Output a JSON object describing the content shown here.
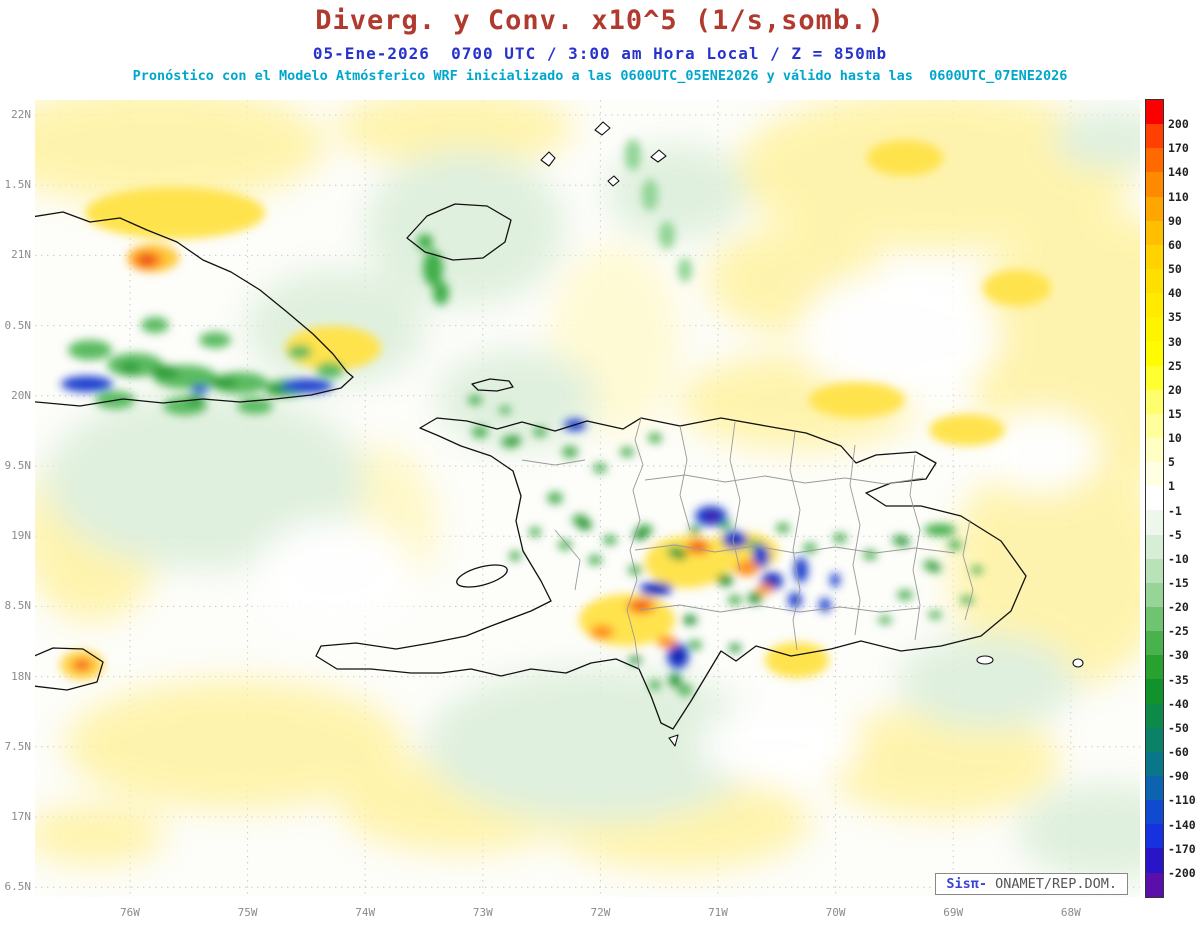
{
  "header": {
    "title": "Diverg. y Conv. x10^5 (1/s,somb.)",
    "datetime_line": "05-Ene-2026  0700 UTC / 3:00 am Hora Local / Z = 850mb",
    "forecast_line": "Pronóstico con el Modelo Atmósferico WRF inicializado a las 0600UTC_05ENE2026 y válido hasta las  0600UTC_07ENE2026",
    "title_color": "#b03a2e",
    "datetime_color": "#2733cc",
    "forecast_color": "#00a7cc"
  },
  "map": {
    "lat_ticks": [
      "22N",
      "1.5N",
      "21N",
      "0.5N",
      "20N",
      "9.5N",
      "19N",
      "8.5N",
      "18N",
      "7.5N",
      "17N",
      "6.5N"
    ],
    "lon_ticks": [
      "76W",
      "75W",
      "74W",
      "73W",
      "72W",
      "71W",
      "70W",
      "69W",
      "68W"
    ],
    "watermark": {
      "brand": "Sisπ-",
      "text": " ONAMET/REP.DOM."
    }
  },
  "colorbar": {
    "units": "x10^5 (1/s)",
    "labels": [
      "200",
      "170",
      "140",
      "110",
      "90",
      "60",
      "50",
      "40",
      "35",
      "30",
      "25",
      "20",
      "15",
      "10",
      "5",
      "1",
      "-1",
      "-5",
      "-10",
      "-15",
      "-20",
      "-25",
      "-30",
      "-35",
      "-40",
      "-50",
      "-60",
      "-90",
      "-110",
      "-140",
      "-170",
      "-200"
    ],
    "colors": [
      "#fa0000",
      "#ff4000",
      "#ff6900",
      "#ff8a00",
      "#ffa600",
      "#ffbf00",
      "#ffd200",
      "#ffdf00",
      "#ffea00",
      "#fff400",
      "#fffb00",
      "#ffff32",
      "#ffff6e",
      "#ffff9b",
      "#ffffc3",
      "#ffffe4",
      "#ffffff",
      "#edf7ec",
      "#d7eed6",
      "#b9e2b8",
      "#97d497",
      "#70c371",
      "#4ab24d",
      "#28a12f",
      "#12922c",
      "#0d8a49",
      "#0b8168",
      "#0a7788",
      "#0c63b0",
      "#104ad0",
      "#1632e0",
      "#2a14c8",
      "#5a0faa"
    ]
  }
}
